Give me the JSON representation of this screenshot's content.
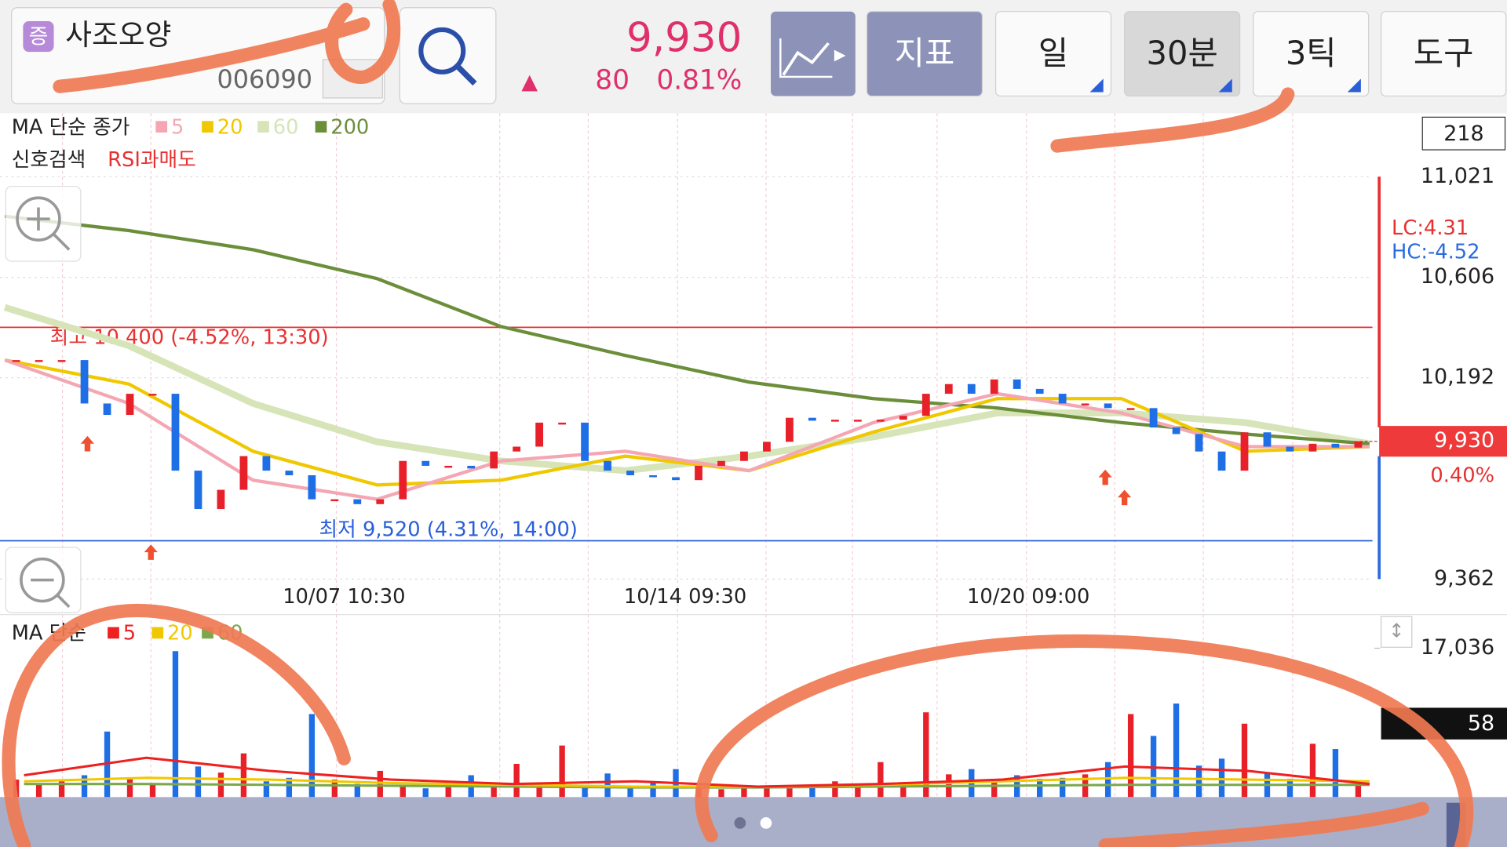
{
  "header": {
    "badge": "증",
    "name": "사조오양",
    "code": "006090",
    "price": "9,930",
    "change_arrow": "▲",
    "change": "80",
    "change_rate": "0.81%"
  },
  "toolbar": {
    "buttons": [
      "지표",
      "일",
      "30분",
      "3틱",
      "도구"
    ]
  },
  "price_chart": {
    "type": "candlestick",
    "legend_title": "MA 단순 종가",
    "signal_title": "신호검색",
    "signal_name": "RSI과매도",
    "count_box": "218",
    "lc": "LC:4.31",
    "hc": "HC:-4.52",
    "x_labels": [
      "10/07 10:30",
      "10/14 09:30",
      "10/20 09:00"
    ],
    "ylim": [
      9362,
      11021
    ],
    "yticks": [
      {
        "value": 9362,
        "label": "9,362"
      },
      {
        "value": 10192,
        "label": "10,192"
      },
      {
        "value": 10606,
        "label": "10,606"
      },
      {
        "value": 11021,
        "label": "11,021"
      }
    ],
    "up_color": "#e8202a",
    "down_color": "#1e6ee6",
    "closes": [
      10265,
      10265,
      10265,
      10086,
      10039,
      10126,
      10126,
      9809,
      9651,
      9730,
      9869,
      9809,
      9790,
      9691,
      9691,
      9671,
      9691,
      9849,
      9829,
      9829,
      9818,
      9888,
      9908,
      10007,
      10007,
      9849,
      9809,
      9790,
      9782,
      9770,
      9829,
      9849,
      9888,
      9928,
      10027,
      10015,
      10019,
      10019,
      10019,
      10035,
      10126,
      10166,
      10126,
      10185,
      10146,
      10126,
      10086,
      10086,
      10067,
      10067,
      9987,
      9960,
      9888,
      9809,
      9967,
      9908,
      9888,
      9920,
      9904,
      9930
    ],
    "ma_series": [
      {
        "name": "5",
        "color": "#f4a7b3",
        "values": [
          10265,
          10086,
          9770,
          9691,
          9849,
          9889,
          9809,
          10007,
          10126,
          10047,
          9908,
          9908
        ]
      },
      {
        "name": "20",
        "color": "#f0c800",
        "values": [
          10265,
          10166,
          9889,
          9750,
          9770,
          9869,
          9809,
          9968,
          10106,
          10106,
          9889,
          9908
        ]
      },
      {
        "name": "60",
        "color": "#d6e4b8",
        "values": [
          10482,
          10324,
          10086,
          9928,
          9849,
          9809,
          9869,
          9948,
          10047,
          10047,
          10007,
          9920
        ]
      },
      {
        "name": "200",
        "color": "#6b8e3a",
        "values": [
          10858,
          10799,
          10720,
          10601,
          10403,
          10284,
          10174,
          10106,
          10067,
          10007,
          9960,
          9920
        ]
      }
    ],
    "high_line": {
      "value": 10400,
      "label": "최고 10,400 (-4.52%, 13:30)",
      "color": "#e83030"
    },
    "low_line": {
      "value": 9520,
      "label": "최저 9,520 (4.31%, 14:00)",
      "color": "#2a5fd8"
    },
    "current": {
      "value": 9930,
      "label": "9,930",
      "rate": "0.40%"
    }
  },
  "volume_chart": {
    "type": "bar",
    "legend_title": "MA 단순",
    "ylim": [
      0,
      17036
    ],
    "yticks": [
      {
        "value": 17036,
        "label": "17,036"
      }
    ],
    "indicator_box": "58",
    "values": [
      2000,
      1500,
      1800,
      2500,
      7500,
      2200,
      1600,
      16700,
      3500,
      2800,
      5000,
      1800,
      2200,
      9500,
      2000,
      1500,
      3000,
      1200,
      1000,
      1400,
      2500,
      1300,
      3800,
      1100,
      5900,
      1300,
      2700,
      1000,
      1600,
      3200,
      1200,
      900,
      1000,
      1000,
      1000,
      1200,
      1800,
      1100,
      4000,
      1500,
      9700,
      2600,
      3200,
      1800,
      2500,
      2100,
      2200,
      2600,
      4000,
      9500,
      7000,
      10700,
      3600,
      4400,
      8400,
      2800,
      2100,
      6100,
      5500,
      1500
    ],
    "ma_series": [
      {
        "name": "5",
        "color": "#ee2020",
        "values": [
          2500,
          4500,
          3000,
          2000,
          1500,
          1800,
          1200,
          1500,
          2000,
          3500,
          3000,
          1500
        ]
      },
      {
        "name": "20",
        "color": "#f0c800",
        "values": [
          1800,
          2200,
          2000,
          1600,
          1400,
          1200,
          1200,
          1400,
          1800,
          2200,
          2000,
          1800
        ]
      },
      {
        "name": "60",
        "color": "#7aa84a",
        "values": [
          1500,
          1500,
          1400,
          1300,
          1200,
          1100,
          1100,
          1200,
          1300,
          1400,
          1400,
          1400
        ]
      }
    ]
  }
}
